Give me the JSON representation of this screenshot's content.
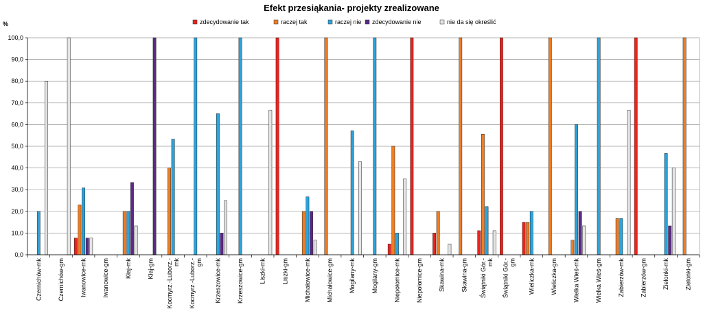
{
  "chart_data": {
    "type": "bar",
    "title": "Efekt przesiąkania- projekty zrealizowane",
    "ylabel": "%",
    "xlabel": "",
    "ylim": [
      0,
      100
    ],
    "yticks": [
      "0,0",
      "10,0",
      "20,0",
      "30,0",
      "40,0",
      "50,0",
      "60,0",
      "70,0",
      "80,0",
      "90,0",
      "100,0"
    ],
    "grid": true,
    "legend_position": "top",
    "categories": [
      "Czernichów-mk",
      "Czernichów-gm",
      "Iwanowice-mk",
      "Iwanowice-gm",
      "Kłaj-mk",
      "Kłaj-gm",
      "Kocmyrz.-Luborz.-mk",
      "Kocmyrz.-Luborz.-gm",
      "Krzeszowice-mk",
      "Krzeszowice-gm",
      "Liszki-mk",
      "Liszki-gm",
      "Michałowice-mk",
      "Michałowice-gm",
      "Mogilany-mk",
      "Mogilany-gm",
      "Niepołomice-mk",
      "Niepołomice-gm",
      "Skawina-mk",
      "Skawina-gm",
      "Świątniki Gór.-mk",
      "Świątniki Gór.-gm",
      "Wieliczka-mk",
      "Wieliczka-gm",
      "Wielka Wieś-mk",
      "Wielka Wieś-gm",
      "Zabierzów-mk",
      "Zabierzów-gm",
      "Zielonki-mk",
      "Zielonki-gm"
    ],
    "series": [
      {
        "name": "zdecydowanie tak",
        "color": "#e8251e",
        "values": [
          0,
          0,
          7.7,
          0,
          0,
          0,
          0,
          0,
          0,
          0,
          0,
          100,
          0,
          0,
          0,
          0,
          5,
          100,
          10,
          0,
          11.1,
          100,
          15,
          0,
          0,
          0,
          0,
          100,
          0,
          0
        ]
      },
      {
        "name": "raczej tak",
        "color": "#ef7d22",
        "values": [
          0,
          0,
          23,
          0,
          20,
          0,
          40,
          0,
          0,
          0,
          0,
          0,
          20,
          100,
          0,
          0,
          50,
          0,
          20,
          100,
          55.6,
          0,
          15,
          100,
          6.7,
          0,
          16.7,
          0,
          0,
          100
        ]
      },
      {
        "name": "raczej nie",
        "color": "#2aa4dd",
        "values": [
          20,
          0,
          30.8,
          0,
          20,
          0,
          53.3,
          100,
          65,
          100,
          0,
          0,
          26.7,
          0,
          57.1,
          100,
          10,
          0,
          0,
          0,
          22.2,
          0,
          20,
          0,
          60,
          100,
          16.7,
          0,
          46.7,
          0
        ]
      },
      {
        "name": "zdecydowanie nie",
        "color": "#5b2a86",
        "values": [
          0,
          0,
          7.7,
          0,
          33.3,
          100,
          0,
          0,
          10,
          0,
          0,
          0,
          20,
          0,
          0,
          0,
          0,
          0,
          0,
          0,
          0,
          0,
          0,
          0,
          20,
          0,
          0,
          0,
          13.3,
          0
        ]
      },
      {
        "name": "nie da się określić",
        "color": "#e4e4e4",
        "values": [
          80,
          100,
          7.7,
          0,
          13.3,
          0,
          0,
          0,
          25,
          0,
          66.7,
          0,
          6.7,
          0,
          42.9,
          0,
          35,
          0,
          5,
          0,
          11.1,
          0,
          0,
          0,
          13.3,
          0,
          66.7,
          0,
          40,
          0
        ]
      }
    ]
  }
}
